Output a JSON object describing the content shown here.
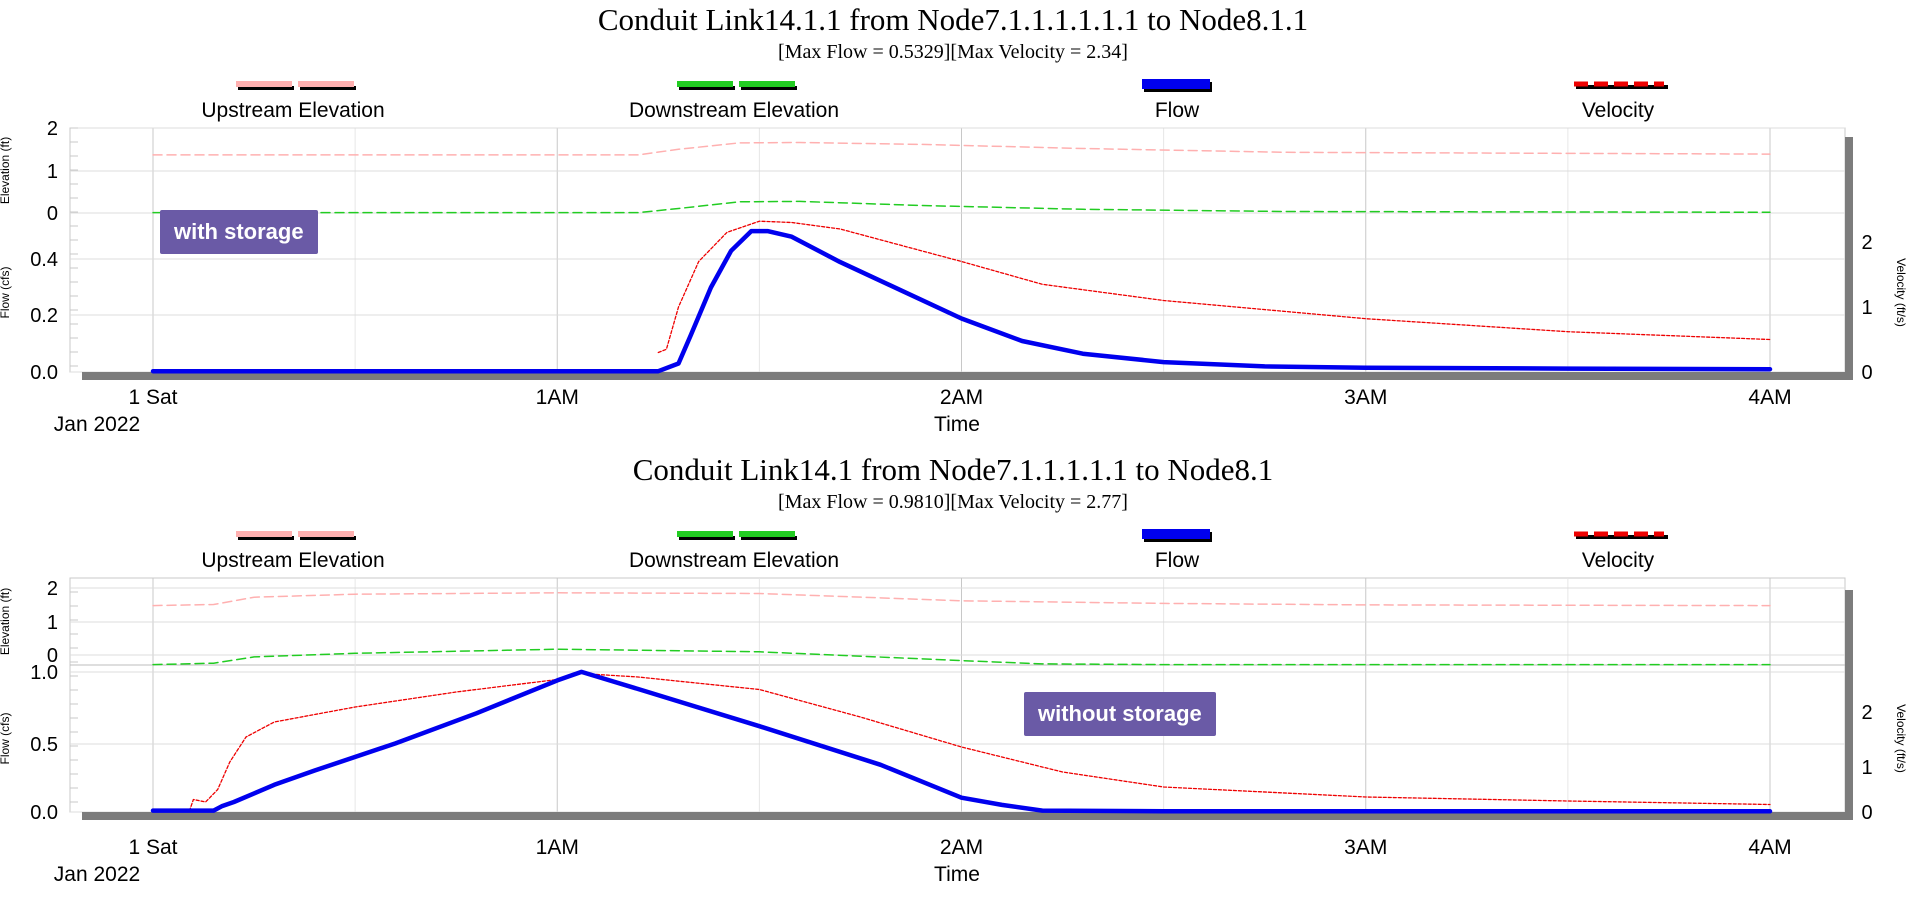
{
  "chart_data": [
    {
      "type": "line",
      "title": "Conduit Link14.1.1 from Node7.1.1.1.1.1.1 to Node8.1.1",
      "subtitle": "[Max Flow = 0.5329][Max Velocity = 2.34]",
      "annotation": "with storage",
      "legend": [
        "Upstream Elevation",
        "Downstream Elevation",
        "Flow",
        "Velocity"
      ],
      "legend_placement": "top",
      "xlabel": "Time",
      "x_date_label": "Jan 2022",
      "x_tick_labels": [
        "1 Sat",
        "1AM",
        "2AM",
        "3AM",
        "4AM"
      ],
      "x_units": "hours",
      "xlim": [
        0,
        4
      ],
      "grid": true,
      "colors": {
        "upstream": "#ffb0b0",
        "downstream": "#22cc22",
        "flow": "#0000ee",
        "velocity": "#ee0000"
      },
      "elevation_axis": {
        "label": "Elevation (ft)",
        "ticks": [
          "2",
          "1",
          "0"
        ],
        "ylim": [
          0,
          2
        ]
      },
      "flow_axis": {
        "label": "Flow (cfs)",
        "ticks": [
          "0.4",
          "0.2",
          "0.0"
        ],
        "ylim": [
          0,
          0.55
        ]
      },
      "velocity_axis": {
        "label": "Velocity (ft/s)",
        "ticks": [
          "2",
          "1",
          "0"
        ],
        "ylim": [
          0,
          2.9
        ]
      },
      "series": [
        {
          "name": "Upstream Elevation",
          "axis": "elevation",
          "x": [
            0,
            1.2,
            1.3,
            1.45,
            1.6,
            1.9,
            2.3,
            2.8,
            4
          ],
          "y": [
            1.55,
            1.55,
            1.7,
            1.87,
            1.88,
            1.83,
            1.72,
            1.62,
            1.57
          ]
        },
        {
          "name": "Downstream Elevation",
          "axis": "elevation",
          "x": [
            0,
            1.2,
            1.3,
            1.45,
            1.6,
            1.9,
            2.3,
            2.8,
            4
          ],
          "y": [
            0.01,
            0.01,
            0.12,
            0.3,
            0.31,
            0.2,
            0.1,
            0.04,
            0.02
          ]
        },
        {
          "name": "Flow",
          "axis": "flow",
          "x": [
            0,
            1.25,
            1.3,
            1.33,
            1.38,
            1.43,
            1.48,
            1.52,
            1.58,
            1.7,
            1.85,
            2,
            2.15,
            2.3,
            2.5,
            2.75,
            3,
            3.5,
            4
          ],
          "y": [
            0.003,
            0.003,
            0.03,
            0.13,
            0.3,
            0.43,
            0.5,
            0.5,
            0.48,
            0.39,
            0.29,
            0.19,
            0.11,
            0.065,
            0.035,
            0.02,
            0.015,
            0.012,
            0.01
          ]
        },
        {
          "name": "Velocity",
          "axis": "velocity",
          "x": [
            0,
            1.24,
            1.25,
            1.27,
            1.3,
            1.35,
            1.42,
            1.5,
            1.58,
            1.7,
            1.85,
            2,
            2.2,
            2.5,
            3,
            3.5,
            4
          ],
          "y": [
            null,
            null,
            0.3,
            0.35,
            1.0,
            1.7,
            2.15,
            2.32,
            2.3,
            2.2,
            1.95,
            1.7,
            1.35,
            1.1,
            0.82,
            0.62,
            0.5
          ]
        }
      ]
    },
    {
      "type": "line",
      "title": "Conduit Link14.1 from Node7.1.1.1.1.1 to Node8.1",
      "subtitle": "[Max Flow = 0.9810][Max Velocity = 2.77]",
      "annotation": "without storage",
      "legend": [
        "Upstream Elevation",
        "Downstream Elevation",
        "Flow",
        "Velocity"
      ],
      "legend_placement": "top",
      "xlabel": "Time",
      "x_date_label": "Jan 2022",
      "x_tick_labels": [
        "1 Sat",
        "1AM",
        "2AM",
        "3AM",
        "4AM"
      ],
      "x_units": "hours",
      "xlim": [
        0,
        4
      ],
      "grid": true,
      "colors": {
        "upstream": "#ffb0b0",
        "downstream": "#22cc22",
        "flow": "#0000ee",
        "velocity": "#ee0000"
      },
      "elevation_axis": {
        "label": "Elevation (ft)",
        "ticks": [
          "2",
          "1",
          "0"
        ],
        "ylim": [
          0,
          2.1
        ]
      },
      "flow_axis": {
        "label": "Flow (cfs)",
        "ticks": [
          "1.0",
          "0.5",
          "0.0"
        ],
        "ylim": [
          0,
          1.0
        ]
      },
      "velocity_axis": {
        "label": "Velocity (ft/s)",
        "ticks": [
          "2",
          "1",
          "0"
        ],
        "ylim": [
          0,
          2.9
        ]
      },
      "series": [
        {
          "name": "Upstream Elevation",
          "axis": "elevation",
          "x": [
            0,
            0.15,
            0.25,
            0.5,
            1,
            1.5,
            2,
            2.5,
            3,
            4
          ],
          "y": [
            1.62,
            1.65,
            1.85,
            1.93,
            1.97,
            1.95,
            1.75,
            1.68,
            1.64,
            1.62
          ]
        },
        {
          "name": "Downstream Elevation",
          "axis": "elevation",
          "x": [
            0,
            0.15,
            0.25,
            0.5,
            1,
            1.5,
            2,
            2.2,
            2.5,
            3,
            4
          ],
          "y": [
            0.01,
            0.05,
            0.22,
            0.32,
            0.43,
            0.36,
            0.12,
            0.03,
            0.01,
            0.01,
            0.01
          ]
        },
        {
          "name": "Flow",
          "axis": "flow",
          "x": [
            0,
            0.15,
            0.17,
            0.2,
            0.25,
            0.3,
            0.4,
            0.6,
            0.8,
            1,
            1.06,
            1.2,
            1.5,
            1.8,
            2,
            2.1,
            2.2,
            2.5,
            3,
            4
          ],
          "y": [
            0.01,
            0.01,
            0.04,
            0.07,
            0.13,
            0.19,
            0.29,
            0.48,
            0.69,
            0.92,
            0.98,
            0.86,
            0.6,
            0.33,
            0.1,
            0.05,
            0.01,
            0.005,
            0.005,
            0.005
          ]
        },
        {
          "name": "Velocity",
          "axis": "velocity",
          "x": [
            0.09,
            0.1,
            0.13,
            0.16,
            0.19,
            0.23,
            0.3,
            0.5,
            0.75,
            1,
            1.06,
            1.2,
            1.5,
            1.75,
            2,
            2.25,
            2.5,
            3,
            3.5,
            4
          ],
          "y": [
            0.02,
            0.25,
            0.2,
            0.45,
            1.0,
            1.5,
            1.8,
            2.1,
            2.4,
            2.65,
            2.77,
            2.7,
            2.45,
            1.9,
            1.3,
            0.8,
            0.5,
            0.3,
            0.22,
            0.15
          ]
        }
      ]
    }
  ]
}
